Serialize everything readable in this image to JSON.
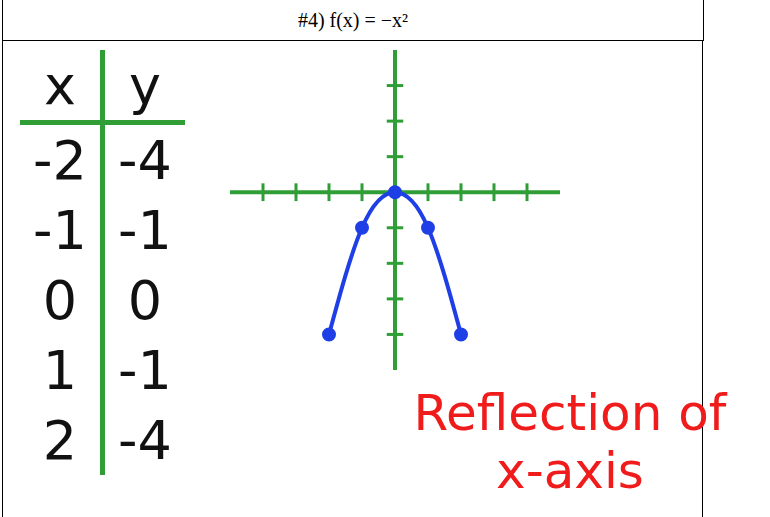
{
  "chart_data": {
    "type": "line",
    "title": "#4) f(x) = −x²",
    "x_label": "x",
    "y_label": "y",
    "x": [
      -2,
      -1,
      0,
      1,
      2
    ],
    "values": [
      -4,
      -1,
      0,
      -1,
      -4
    ],
    "color": "#1f3fe6",
    "marker": "circle",
    "xlim": [
      -5,
      5
    ],
    "ylim": [
      -5,
      4
    ],
    "xticks": [
      -4,
      -3,
      -2,
      -1,
      1,
      2,
      3,
      4
    ],
    "yticks": [
      -4,
      -3,
      -2,
      -1,
      1,
      2,
      3
    ],
    "tick_labels": false,
    "grid": false,
    "annotation": "Reflection of x-axis"
  }
}
